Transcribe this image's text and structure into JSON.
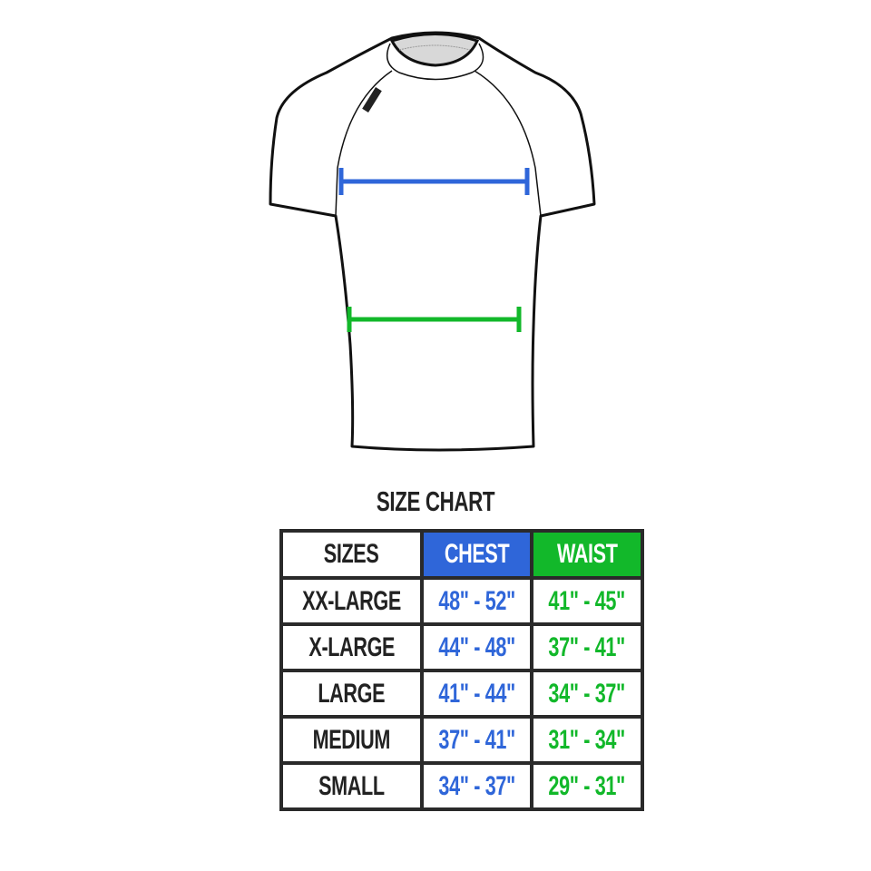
{
  "title": "SIZE CHART",
  "colors": {
    "chest": "#2f66d9",
    "waist": "#12b82a"
  },
  "headers": [
    "SIZES",
    "CHEST",
    "WAIST"
  ],
  "rows": [
    {
      "size": "XX-LARGE",
      "chest": "48\" - 52\"",
      "waist": "41\" - 45\""
    },
    {
      "size": "X-LARGE",
      "chest": "44\" - 48\"",
      "waist": "37\" - 41\""
    },
    {
      "size": "LARGE",
      "chest": "41\" - 44\"",
      "waist": "34\" - 37\""
    },
    {
      "size": "MEDIUM",
      "chest": "37\" - 41\"",
      "waist": "31\" - 34\""
    },
    {
      "size": "SMALL",
      "chest": "34\" - 37\"",
      "waist": "29\" - 31\""
    }
  ]
}
